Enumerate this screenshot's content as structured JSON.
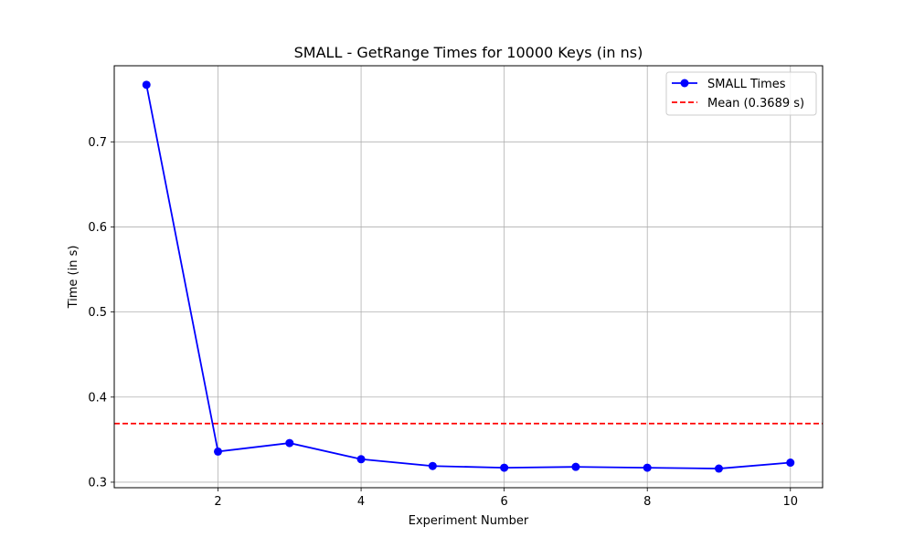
{
  "chart_data": {
    "type": "line",
    "title": "SMALL - GetRange Times for 10000 Keys (in ns)",
    "xlabel": "Experiment Number",
    "ylabel": "Time (in s)",
    "x": [
      1,
      2,
      3,
      4,
      5,
      6,
      7,
      8,
      9,
      10
    ],
    "series": [
      {
        "name": "SMALL Times",
        "values": [
          0.767,
          0.336,
          0.346,
          0.327,
          0.319,
          0.317,
          0.318,
          0.317,
          0.316,
          0.323
        ],
        "color": "#0000ff",
        "marker": "circle",
        "linestyle": "solid"
      }
    ],
    "mean": {
      "label": "Mean (0.3689 s)",
      "value": 0.3689,
      "color": "#ff0000",
      "linestyle": "dashed"
    },
    "xlim": [
      0.55,
      10.45
    ],
    "ylim": [
      0.2935,
      0.7894
    ],
    "xticks": [
      2,
      4,
      6,
      8,
      10
    ],
    "xtick_labels": [
      "2",
      "4",
      "6",
      "8",
      "10"
    ],
    "yticks": [
      0.3,
      0.4,
      0.5,
      0.6,
      0.7
    ],
    "ytick_labels": [
      "0.3",
      "0.4",
      "0.5",
      "0.6",
      "0.7"
    ],
    "grid": true,
    "legend_position": "top-right"
  }
}
